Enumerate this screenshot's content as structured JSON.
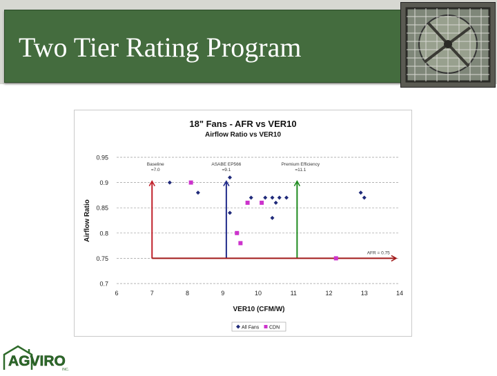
{
  "slide": {
    "title": "Two Tier Rating Program"
  },
  "logo": {
    "text": "AGVIRO",
    "sub": "INC.",
    "brand_color": "#2e6a2a"
  },
  "chart_data": {
    "type": "scatter",
    "title": "18\" Fans - AFR vs VER10",
    "subtitle": "Airflow Ratio vs VER10",
    "xlabel": "VER10 (CFM/W)",
    "ylabel": "Airflow Ratio",
    "xlim": [
      6,
      14
    ],
    "ylim": [
      0.7,
      0.95
    ],
    "x_ticks": [
      "6",
      "7",
      "8",
      "9",
      "10",
      "11",
      "12",
      "13",
      "14"
    ],
    "y_ticks": [
      "0.7",
      "0.75",
      "0.8",
      "0.85",
      "0.9",
      "0.95"
    ],
    "grid": "horizontal dashed",
    "legend_position": "bottom",
    "series": [
      {
        "name": "All Fans",
        "color": "#1f2a7a",
        "marker": "diamond",
        "points": [
          [
            7.5,
            0.9
          ],
          [
            8.3,
            0.88
          ],
          [
            9.2,
            0.91
          ],
          [
            9.2,
            0.84
          ],
          [
            9.8,
            0.87
          ],
          [
            10.2,
            0.87
          ],
          [
            10.4,
            0.87
          ],
          [
            10.5,
            0.86
          ],
          [
            10.6,
            0.87
          ],
          [
            10.8,
            0.87
          ],
          [
            10.4,
            0.83
          ],
          [
            12.9,
            0.88
          ],
          [
            13.0,
            0.87
          ]
        ]
      },
      {
        "name": "CDN",
        "color": "#cc33cc",
        "marker": "square",
        "points": [
          [
            8.1,
            0.9
          ],
          [
            9.7,
            0.86
          ],
          [
            10.1,
            0.86
          ],
          [
            9.4,
            0.8
          ],
          [
            9.5,
            0.78
          ],
          [
            12.2,
            0.75
          ]
        ]
      }
    ],
    "annotations": [
      {
        "label": "Baseline",
        "value_label": "=7.0",
        "x": 7.0,
        "color": "#c0202a"
      },
      {
        "label": "ASABE EP566",
        "value_label": "=9.1",
        "x": 9.1,
        "color": "#1f2a8a"
      },
      {
        "label": "Premium Efficiency",
        "value_label": "=11.1",
        "x": 11.1,
        "color": "#1e8a1e"
      }
    ],
    "afr_line": {
      "label": "AFR = 0.75",
      "y": 0.75,
      "x_from": 7.0,
      "x_to": 13.9,
      "color": "#a01818"
    }
  }
}
